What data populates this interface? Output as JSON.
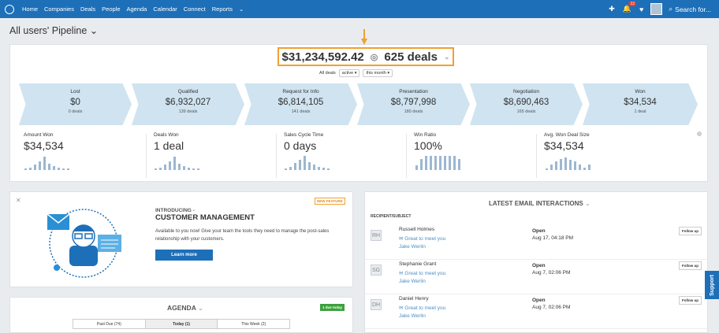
{
  "nav": {
    "items": [
      "Home",
      "Companies",
      "Deals",
      "People",
      "Agenda",
      "Calendar",
      "Connect",
      "Reports"
    ],
    "notif_count": "12",
    "search_placeholder": "Search for..."
  },
  "page": {
    "title": "All users' Pipeline"
  },
  "summary": {
    "total": "$31,234,592.42",
    "deals": "625 deals"
  },
  "filters": {
    "label": "All deals",
    "status": "active",
    "period": "this month"
  },
  "stages": [
    {
      "name": "Lost",
      "amount": "$0",
      "count": "0 deals"
    },
    {
      "name": "Qualified",
      "amount": "$6,932,027",
      "count": "139 deals"
    },
    {
      "name": "Request for Info",
      "amount": "$6,814,105",
      "count": "141 deals"
    },
    {
      "name": "Presentation",
      "amount": "$8,797,998",
      "count": "180 deals"
    },
    {
      "name": "Negotiation",
      "amount": "$8,690,463",
      "count": "165 deals"
    },
    {
      "name": "Won",
      "amount": "$34,534",
      "count": "1 deal"
    }
  ],
  "stats": [
    {
      "label": "Amount Won",
      "value": "$34,534"
    },
    {
      "label": "Deals Won",
      "value": "1 deal"
    },
    {
      "label": "Sales Cycle Time",
      "value": "0 days"
    },
    {
      "label": "Win Ratio",
      "value": "100%"
    },
    {
      "label": "Avg. Won Deal Size",
      "value": "$34,534"
    }
  ],
  "feature": {
    "badge": "NEW FEATURE",
    "intro": "INTRODUCING -",
    "title": "CUSTOMER MANAGEMENT",
    "text": "Available to you now! Give your team the tools they need to manage the post-sales relationship with your customers.",
    "button": "Learn more"
  },
  "emails": {
    "title": "LATEST EMAIL INTERACTIONS",
    "col": "RECIPIENT/SUBJECT",
    "follow": "Follow up",
    "rows": [
      {
        "initials": "RH",
        "name": "Russell Holmes",
        "subject": "Great to meet you",
        "owner": "Jake Werlin",
        "status": "Open",
        "date": "Aug 17, 04:18 PM"
      },
      {
        "initials": "SG",
        "name": "Stephanie Grant",
        "subject": "Great to meet you",
        "owner": "Jake Werlin",
        "status": "Open",
        "date": "Aug 7, 02:06 PM"
      },
      {
        "initials": "DH",
        "name": "Daniel Henry",
        "subject": "Great to meet you",
        "owner": "Jake Werlin",
        "status": "Open",
        "date": "Aug 7, 02:06 PM"
      }
    ]
  },
  "agenda": {
    "title": "AGENDA",
    "due": "1 due today",
    "tabs": [
      "Past Due (74)",
      "Today (1)",
      "This Week (2)"
    ]
  },
  "support": "Support"
}
